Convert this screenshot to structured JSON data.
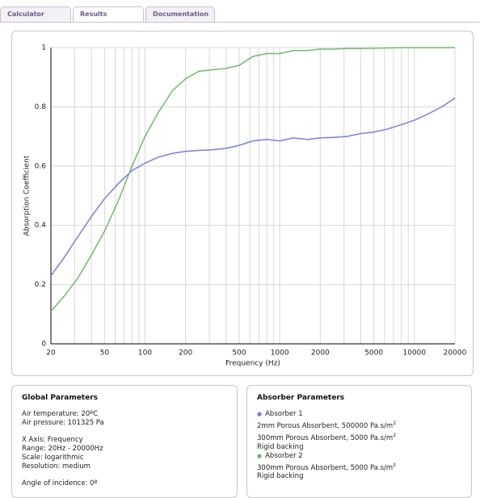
{
  "tabs": [
    "Calculator",
    "Results",
    "Documentation"
  ],
  "chart_data": {
    "type": "line",
    "xlabel": "Frequency (Hz)",
    "ylabel": "Absorption Coefficient",
    "xscale": "log",
    "x": [
      20,
      25,
      31.5,
      40,
      50,
      63,
      80,
      100,
      125,
      160,
      200,
      250,
      315,
      400,
      500,
      630,
      800,
      1000,
      1250,
      1600,
      2000,
      2500,
      3150,
      4000,
      5000,
      6300,
      8000,
      10000,
      12500,
      16000,
      20000
    ],
    "series": [
      {
        "name": "Absorber 1",
        "color": "#7b7bf0",
        "values": [
          0.23,
          0.29,
          0.36,
          0.43,
          0.49,
          0.54,
          0.585,
          0.61,
          0.63,
          0.643,
          0.65,
          0.653,
          0.655,
          0.66,
          0.67,
          0.685,
          0.69,
          0.685,
          0.695,
          0.69,
          0.695,
          0.697,
          0.7,
          0.71,
          0.715,
          0.725,
          0.74,
          0.755,
          0.775,
          0.8,
          0.83
        ]
      },
      {
        "name": "Absorber 2",
        "color": "#72b872",
        "values": [
          0.11,
          0.16,
          0.22,
          0.3,
          0.38,
          0.48,
          0.6,
          0.7,
          0.78,
          0.855,
          0.895,
          0.92,
          0.925,
          0.93,
          0.94,
          0.97,
          0.98,
          0.98,
          0.99,
          0.99,
          0.995,
          0.995,
          0.997,
          0.997,
          0.998,
          0.999,
          1,
          1,
          1,
          1,
          1
        ]
      }
    ],
    "xlim": [
      20,
      20000
    ],
    "xticks": [
      20,
      50,
      100,
      200,
      500,
      1000,
      2000,
      5000,
      10000,
      20000
    ],
    "xminor": [
      30,
      40,
      60,
      70,
      80,
      90,
      300,
      400,
      600,
      700,
      800,
      900,
      3000,
      4000,
      6000,
      7000,
      8000,
      9000
    ],
    "ylim": [
      0,
      1
    ],
    "yticks": [
      0,
      0.2,
      0.4,
      0.6,
      0.8,
      1
    ],
    "grid": true
  },
  "global": {
    "title": "Global Parameters",
    "groups": [
      [
        "Air temperature: 20ºC",
        "Air pressure: 101325 Pa"
      ],
      [
        "X Axis: Frequency",
        "Range: 20Hz - 20000Hz",
        "Scale: logarithmic",
        "Resolution: medium"
      ],
      [
        "Angle of incidence: 0º"
      ]
    ]
  },
  "absorbers": {
    "title": "Absorber Parameters",
    "items": [
      {
        "lines": [
          {
            "text": "2mm Porous Absorbent, 500000 Pa.s/m",
            "sup": "2"
          },
          {
            "text": "300mm Porous Absorbent, 5000 Pa.s/m",
            "sup": "2"
          },
          {
            "text": "Rigid backing"
          }
        ]
      },
      {
        "lines": [
          {
            "text": "300mm Porous Absorbent, 5000 Pa.s/m",
            "sup": "2"
          },
          {
            "text": "Rigid backing"
          }
        ]
      }
    ]
  }
}
